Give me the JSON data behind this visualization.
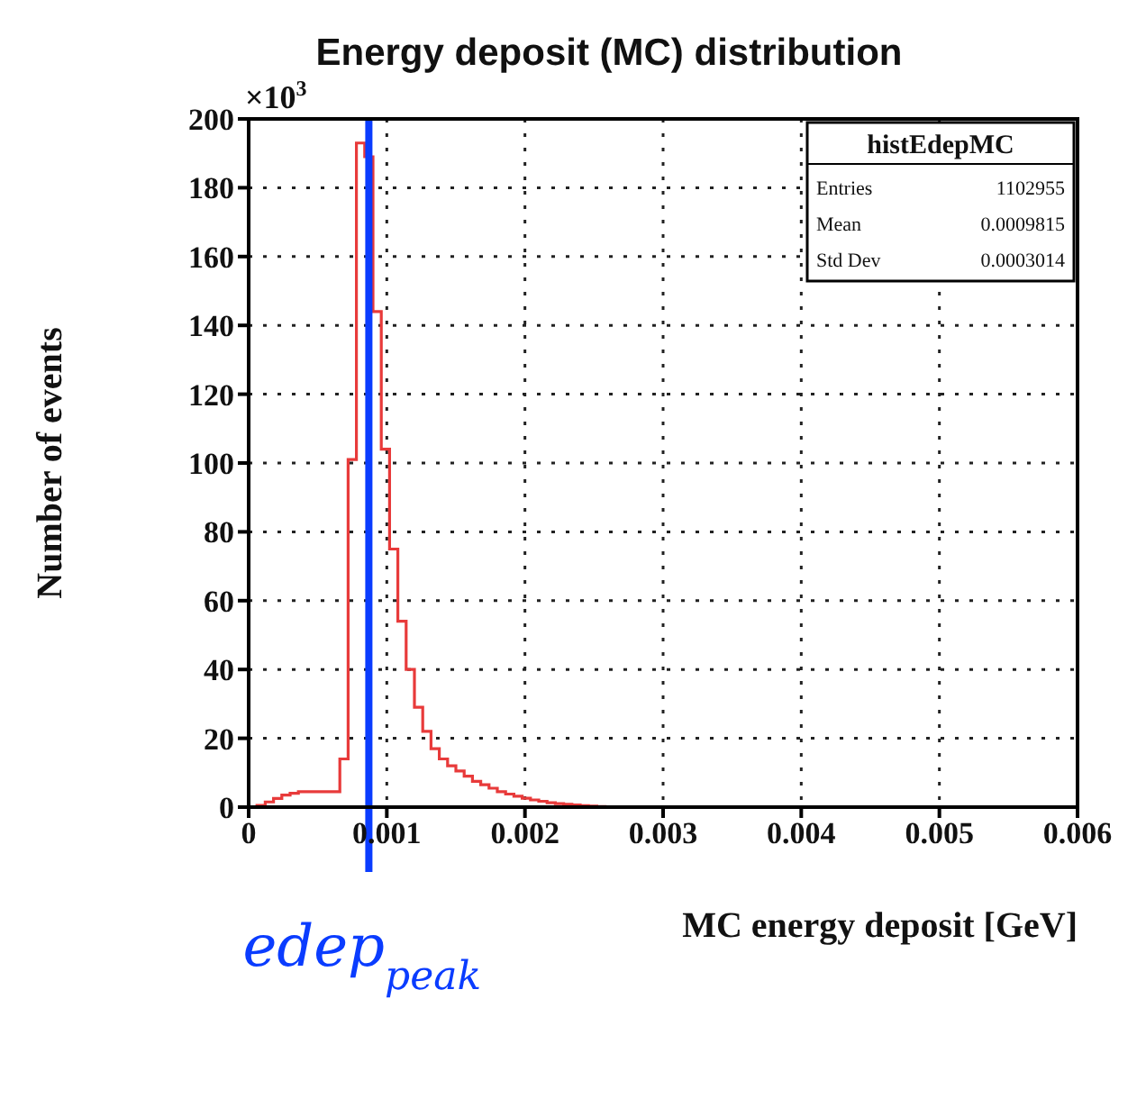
{
  "chart_data": {
    "type": "histogram",
    "title": "Energy deposit (MC) distribution",
    "xlabel": "MC energy deposit [GeV]",
    "ylabel": "Number of events",
    "bins": [
      0,
      6e-05,
      0.00012,
      0.00018,
      0.00024,
      0.0003,
      0.00036,
      0.00042,
      0.00048,
      0.00054,
      0.0006,
      0.00066,
      0.00072,
      0.00078,
      0.00084,
      0.0009,
      0.00096,
      0.00102,
      0.00108,
      0.00114,
      0.0012,
      0.00126,
      0.00132,
      0.00138,
      0.00144,
      0.0015,
      0.00156,
      0.00162,
      0.00168,
      0.00174,
      0.0018,
      0.00186,
      0.00192,
      0.00198,
      0.00204,
      0.0021,
      0.00216,
      0.00222,
      0.00228,
      0.00234,
      0.0024,
      0.00246,
      0.00252,
      0.00258,
      0.00264,
      0.0027,
      0.00276,
      0.00282,
      0.00288,
      0.00294,
      0.003
    ],
    "values": [
      0,
      0.5,
      1.5,
      2.5,
      3.5,
      4,
      4.5,
      4.5,
      4.5,
      4.5,
      4.5,
      14,
      101,
      193,
      189,
      144,
      104,
      75,
      54,
      40,
      29,
      22,
      17,
      14,
      12,
      10.5,
      9,
      7.5,
      6.5,
      5.5,
      4.5,
      3.8,
      3.2,
      2.6,
      2.1,
      1.7,
      1.3,
      1,
      0.8,
      0.6,
      0.4,
      0.3,
      0.2,
      0,
      0,
      0,
      0,
      0,
      0,
      0
    ],
    "color": "#e83a3a",
    "xlim": [
      0,
      0.006
    ],
    "xticks": [
      0,
      0.001,
      0.002,
      0.003,
      0.004,
      0.005,
      0.006
    ],
    "ylim": [
      0,
      200
    ],
    "yticks": [
      0,
      20,
      40,
      60,
      80,
      100,
      120,
      140,
      160,
      180,
      200
    ],
    "grid": true,
    "ref_lines": [
      {
        "axis": "x",
        "value": 0.00087,
        "label": "edep$_{peak}$",
        "color": "#0a3cff"
      }
    ],
    "annotations": [
      "×10$^{3}$",
      "histEdepMC",
      "Entries 1102955",
      "Mean 0.0009815",
      "Std Dev 0.0003014"
    ]
  }
}
